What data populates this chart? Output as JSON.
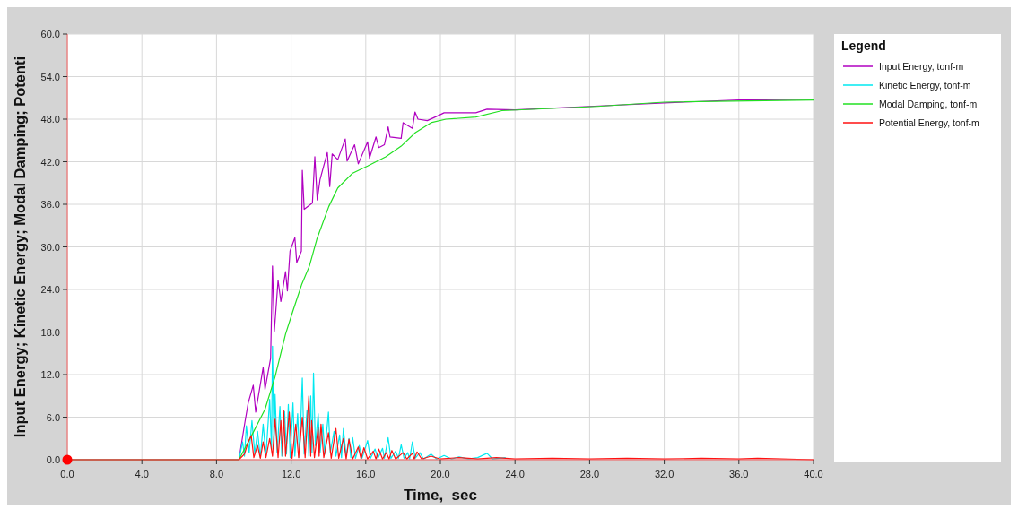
{
  "chart_data": {
    "type": "line",
    "xlabel": "Time,  sec",
    "ylabel": "Input Energy; Kinetic Energy; Modal Damping; Potenti",
    "legend_title": "Legend",
    "legend": "right",
    "grid": true,
    "marker": "none",
    "line_style": "solid",
    "xlim": [
      0,
      40
    ],
    "ylim": [
      0,
      60
    ],
    "xticks": [
      {
        "value": 0,
        "label": "0.0"
      },
      {
        "value": 4,
        "label": "4.0"
      },
      {
        "value": 8,
        "label": "8.0"
      },
      {
        "value": 12,
        "label": "12.0"
      },
      {
        "value": 16,
        "label": "16.0"
      },
      {
        "value": 20,
        "label": "20.0"
      },
      {
        "value": 24,
        "label": "24.0"
      },
      {
        "value": 28,
        "label": "28.0"
      },
      {
        "value": 32,
        "label": "32.0"
      },
      {
        "value": 36,
        "label": "36.0"
      },
      {
        "value": 40,
        "label": "40.0"
      }
    ],
    "yticks": [
      {
        "value": 0,
        "label": "0.0"
      },
      {
        "value": 6,
        "label": "6.0"
      },
      {
        "value": 12,
        "label": "12.0"
      },
      {
        "value": 18,
        "label": "18.0"
      },
      {
        "value": 24,
        "label": "24.0"
      },
      {
        "value": 30,
        "label": "30.0"
      },
      {
        "value": 36,
        "label": "36.0"
      },
      {
        "value": 42,
        "label": "42.0"
      },
      {
        "value": 48,
        "label": "48.0"
      },
      {
        "value": 54,
        "label": "54.0"
      },
      {
        "value": 60,
        "label": "60.0"
      }
    ],
    "series": [
      {
        "name": "Input Energy, tonf-m",
        "color": "#b000c0",
        "x": [
          0,
          9.2,
          9.53,
          9.7,
          9.97,
          10.1,
          10.5,
          10.6,
          10.9,
          11.0,
          11.1,
          11.3,
          11.45,
          11.7,
          11.8,
          11.94,
          12.2,
          12.3,
          12.55,
          12.6,
          12.7,
          13.14,
          13.27,
          13.4,
          13.55,
          13.94,
          14.07,
          14.2,
          14.5,
          14.9,
          15.0,
          15.4,
          15.6,
          16.1,
          16.2,
          16.55,
          16.7,
          17.0,
          17.2,
          17.3,
          17.9,
          18.0,
          18.5,
          18.64,
          18.8,
          19.3,
          19.8,
          20.2,
          21.9,
          22.5,
          24,
          28,
          32,
          36,
          40
        ],
        "values": [
          0,
          0,
          5.4,
          8.0,
          10.5,
          6.7,
          13.0,
          9.9,
          14.3,
          27.3,
          18.1,
          25.3,
          22.3,
          26.5,
          23.8,
          29.4,
          31.3,
          27.8,
          29.4,
          40.8,
          35.3,
          36.2,
          42.7,
          36.6,
          39.5,
          43.3,
          38.5,
          43.1,
          42.3,
          45.2,
          42.1,
          44.4,
          41.7,
          44.8,
          42.5,
          45.5,
          44.0,
          44.4,
          46.9,
          45.5,
          45.3,
          47.5,
          46.7,
          49.0,
          48.0,
          47.8,
          48.4,
          48.9,
          48.9,
          49.4,
          49.3,
          49.8,
          50.3,
          50.7,
          50.8
        ]
      },
      {
        "name": "Kinetic Energy, tonf-m",
        "color": "#00e8f0",
        "x": [
          0,
          9.2,
          9.4,
          9.5,
          9.6,
          9.75,
          9.9,
          10.05,
          10.2,
          10.35,
          10.5,
          10.65,
          10.85,
          10.95,
          11.0,
          11.08,
          11.14,
          11.25,
          11.4,
          11.5,
          11.65,
          11.75,
          11.85,
          11.95,
          12.1,
          12.2,
          12.35,
          12.45,
          12.6,
          12.7,
          12.85,
          12.95,
          13.05,
          13.12,
          13.2,
          13.3,
          13.45,
          13.55,
          13.7,
          13.8,
          14.0,
          14.1,
          14.3,
          14.4,
          14.6,
          14.7,
          14.8,
          14.95,
          15.1,
          15.2,
          15.3,
          15.45,
          15.65,
          15.8,
          16.1,
          16.25,
          16.5,
          16.65,
          16.9,
          17.0,
          17.2,
          17.35,
          17.6,
          17.75,
          17.9,
          18.05,
          18.25,
          18.35,
          18.5,
          18.65,
          18.9,
          19.1,
          19.5,
          19.8,
          20.2,
          20.6,
          21.0,
          21.5,
          22.0,
          22.5,
          22.8,
          23.5
        ],
        "values": [
          0,
          0,
          2.5,
          0.5,
          4.8,
          1.0,
          5.5,
          0.8,
          4.0,
          0.3,
          5.0,
          0.5,
          8.5,
          1.5,
          16.0,
          2.0,
          9.2,
          1.0,
          7.5,
          0.5,
          6.8,
          0.8,
          7.8,
          0.3,
          8.0,
          0.5,
          6.5,
          0.3,
          11.5,
          0.8,
          7.0,
          0.5,
          9.0,
          1.0,
          12.2,
          2.0,
          6.5,
          1.0,
          5.0,
          0.8,
          6.7,
          1.0,
          4.0,
          0.5,
          3.5,
          0.3,
          4.4,
          0.5,
          3.0,
          0.3,
          3.1,
          0.2,
          2.0,
          0.2,
          2.7,
          0.2,
          1.5,
          0.2,
          1.6,
          0.2,
          3.1,
          0.2,
          1.2,
          0.2,
          2.1,
          0.2,
          1.0,
          0.1,
          2.5,
          0.2,
          1.0,
          0.1,
          0.8,
          0.1,
          0.6,
          0.1,
          0.4,
          0.1,
          0.3,
          0.9,
          0.1,
          0.3
        ]
      },
      {
        "name": "Modal Damping, tonf-m",
        "color": "#22e022",
        "x": [
          0,
          9.2,
          9.86,
          10.6,
          11.14,
          11.7,
          12.1,
          12.58,
          12.98,
          13.38,
          14.02,
          14.5,
          15.3,
          16.1,
          17.07,
          17.9,
          18.66,
          19.5,
          20.3,
          21.9,
          23.3,
          28.4,
          32,
          40
        ],
        "values": [
          0,
          0,
          3.3,
          7.1,
          11.7,
          17.7,
          21.0,
          24.8,
          27.3,
          31.1,
          35.7,
          38.3,
          40.4,
          41.4,
          42.7,
          44.2,
          46.1,
          47.5,
          48.0,
          48.3,
          49.2,
          49.8,
          50.4,
          50.7
        ]
      },
      {
        "name": "Potential Energy, tonf-m",
        "color": "#ff1010",
        "x": [
          0,
          9.2,
          9.5,
          9.7,
          9.86,
          10.0,
          10.2,
          10.35,
          10.5,
          10.65,
          10.85,
          11.0,
          11.14,
          11.3,
          11.45,
          11.55,
          11.6,
          11.7,
          11.9,
          12.05,
          12.25,
          12.4,
          12.6,
          12.75,
          12.95,
          13.05,
          13.1,
          13.25,
          13.45,
          13.5,
          13.6,
          13.75,
          14.0,
          14.15,
          14.4,
          14.55,
          14.8,
          14.95,
          15.1,
          15.3,
          15.6,
          15.75,
          15.9,
          16.1,
          16.4,
          16.55,
          16.7,
          16.9,
          17.1,
          17.25,
          17.4,
          17.6,
          18.0,
          18.2,
          18.5,
          18.6,
          18.75,
          19.0,
          19.5,
          20,
          21,
          22,
          23,
          24,
          26,
          28,
          30,
          32,
          34,
          36,
          37,
          40
        ],
        "values": [
          0,
          0,
          0.8,
          2.5,
          3.4,
          0.3,
          2.0,
          0.2,
          2.5,
          0.3,
          3.0,
          0.5,
          5.7,
          0.3,
          5.5,
          0.5,
          6.9,
          0.5,
          6.7,
          0.2,
          5.0,
          0.3,
          6.0,
          0.3,
          9.0,
          0.5,
          5.5,
          0.3,
          4.5,
          0.5,
          5.0,
          0.3,
          3.8,
          0.2,
          4.4,
          0.2,
          3.0,
          0.1,
          2.9,
          0.1,
          1.8,
          0.1,
          1.7,
          0.1,
          1.2,
          0.1,
          1.5,
          0.1,
          1.0,
          0.1,
          1.3,
          0.1,
          1.0,
          0.1,
          0.9,
          0.1,
          1.1,
          0.1,
          0.5,
          0.1,
          0.3,
          0.1,
          0.3,
          0.1,
          0.2,
          0.1,
          0.2,
          0.1,
          0.2,
          0.1,
          0.2,
          0
        ]
      }
    ]
  }
}
